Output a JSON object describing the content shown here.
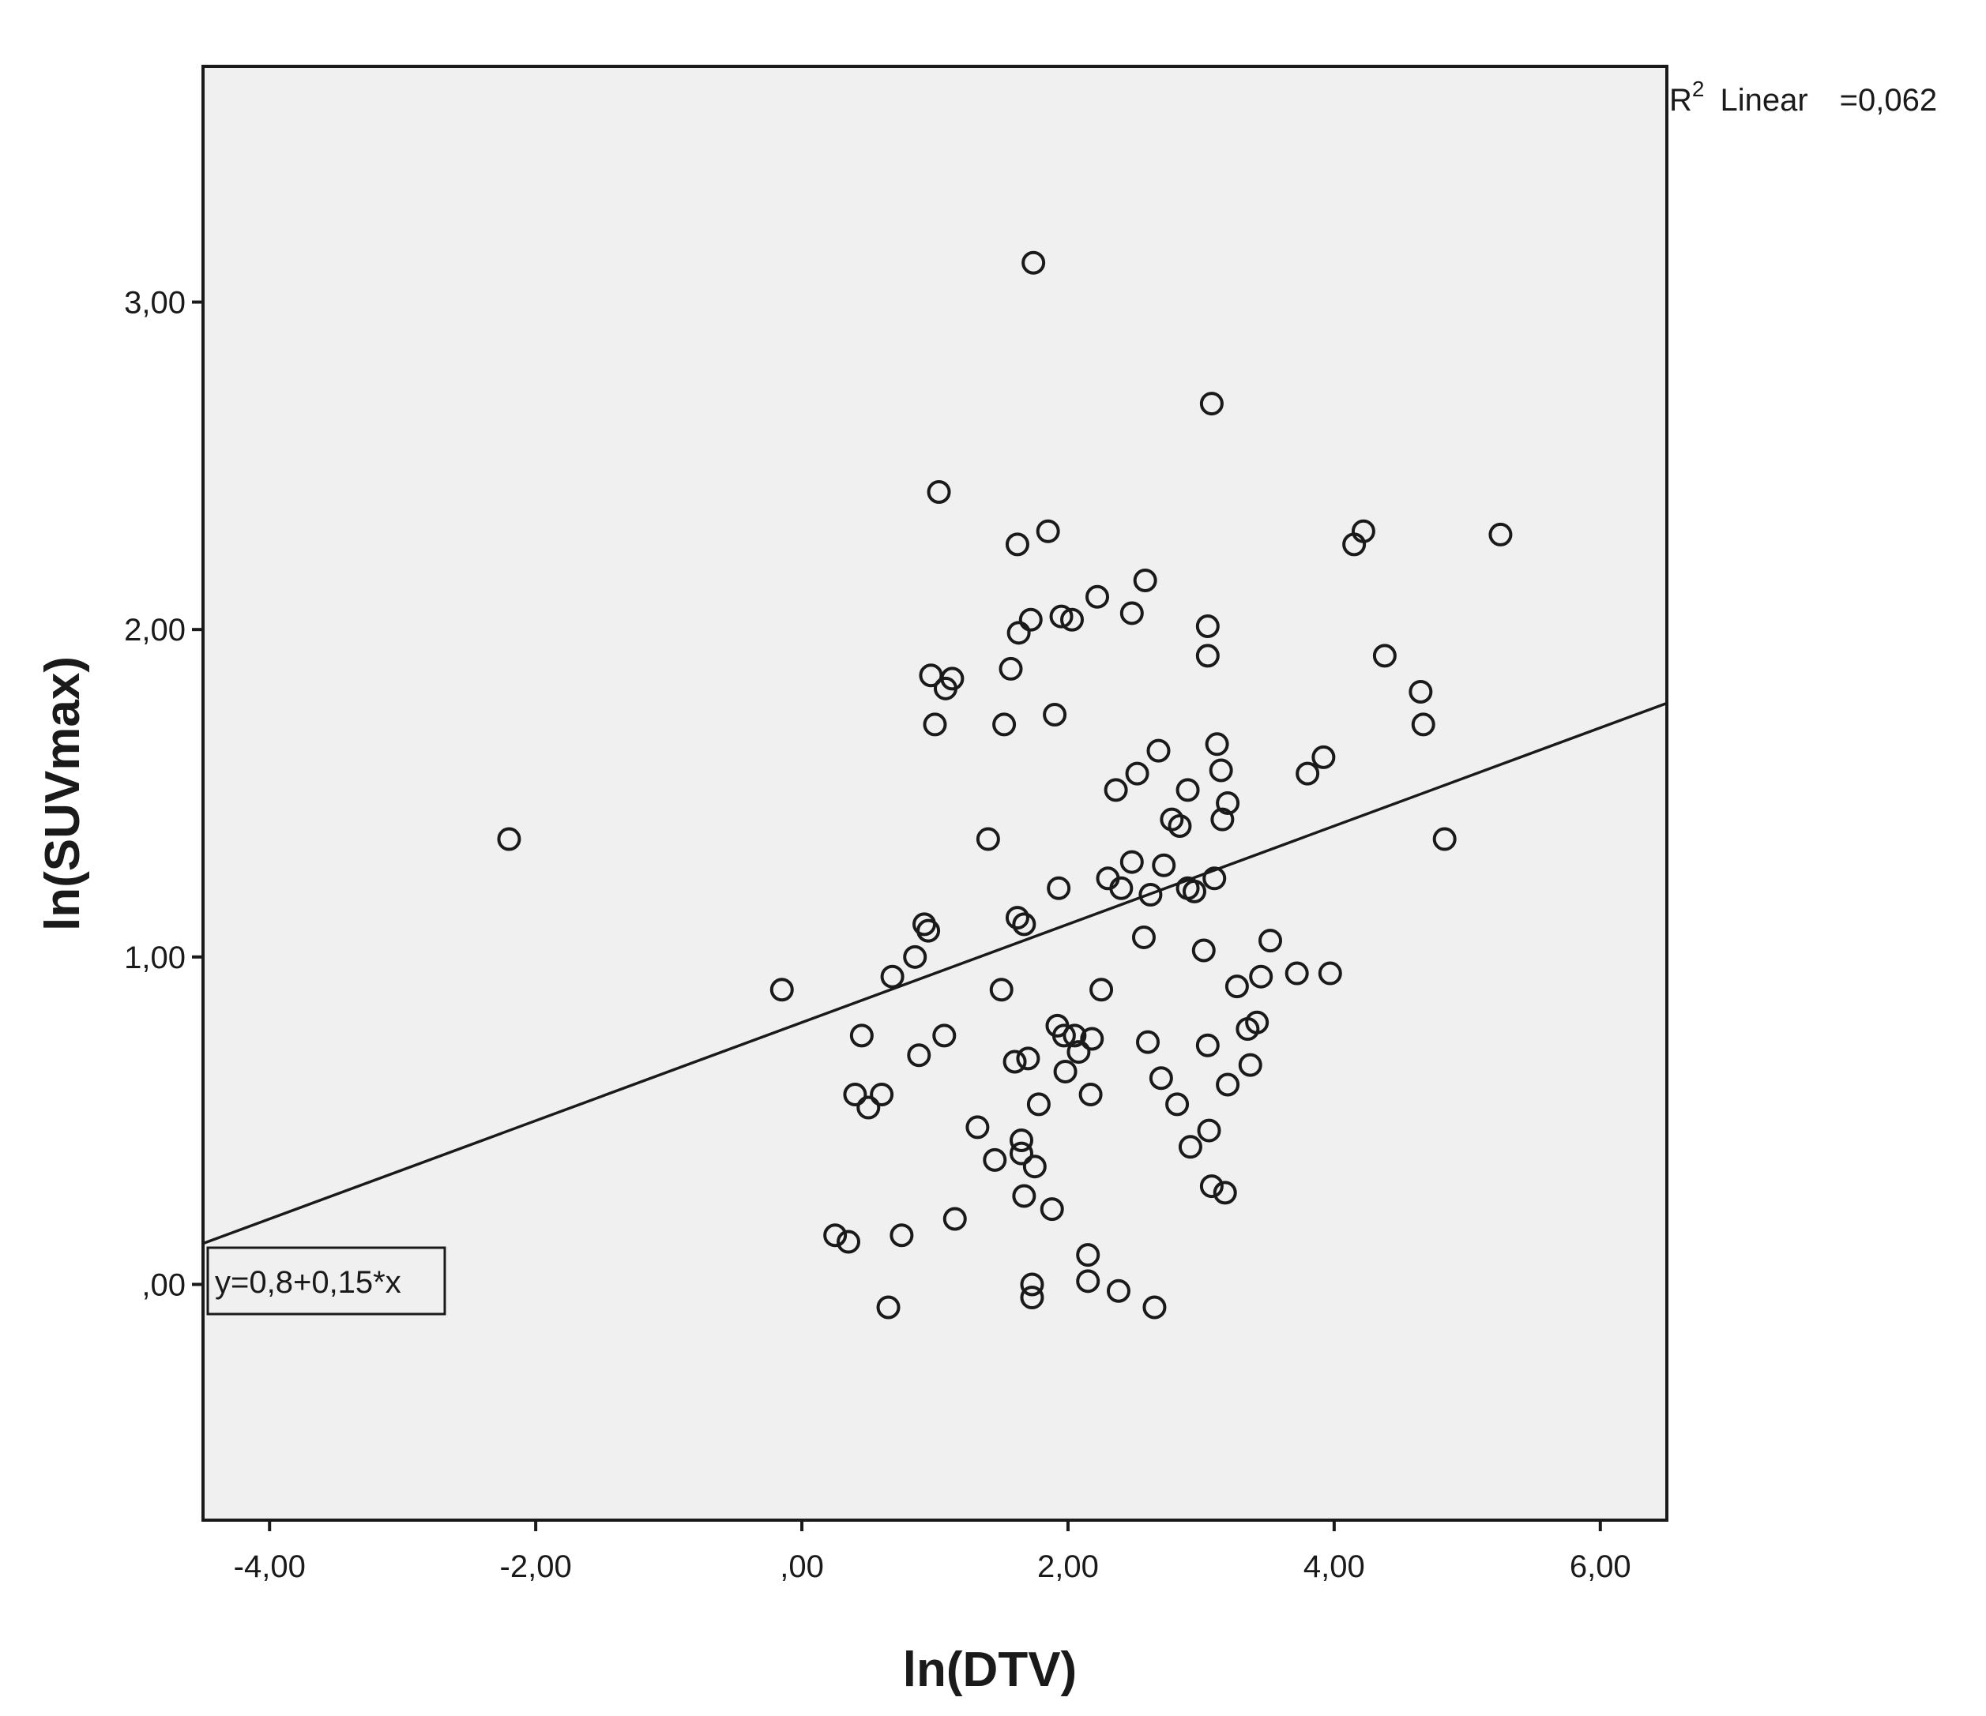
{
  "chart_data": {
    "type": "scatter",
    "xlabel": "ln(DTV)",
    "ylabel": "ln(SUVmax)",
    "xlim": [
      -4.5,
      6.5
    ],
    "ylim": [
      -0.72,
      3.72
    ],
    "x_ticks": [
      -4,
      -2,
      0,
      2,
      4,
      6
    ],
    "x_tick_labels": [
      "-4,00",
      "-2,00",
      ",00",
      "2,00",
      "4,00",
      "6,00"
    ],
    "y_ticks": [
      0,
      1,
      2,
      3
    ],
    "y_tick_labels": [
      ",00",
      "1,00",
      "2,00",
      "3,00"
    ],
    "grid": false,
    "background": "#f0f0f0",
    "marker_color": "#1a1a1a",
    "fit_line": {
      "type": "linear",
      "intercept": 0.8,
      "slope": 0.15,
      "equation_label": "y=0,8+0,15*x",
      "r2_label": "R",
      "r2_sup": "2",
      "r2_word": "Linear",
      "r2_value": "=0,062"
    },
    "points": [
      [
        -2.2,
        1.36
      ],
      [
        -0.15,
        0.9
      ],
      [
        0.25,
        0.15
      ],
      [
        0.35,
        0.13
      ],
      [
        0.4,
        0.58
      ],
      [
        0.45,
        0.76
      ],
      [
        0.5,
        0.54
      ],
      [
        0.6,
        0.58
      ],
      [
        0.65,
        -0.07
      ],
      [
        0.68,
        0.94
      ],
      [
        0.75,
        0.15
      ],
      [
        0.85,
        1.0
      ],
      [
        0.88,
        0.7
      ],
      [
        0.92,
        1.1
      ],
      [
        0.95,
        1.08
      ],
      [
        0.97,
        1.86
      ],
      [
        1.0,
        1.71
      ],
      [
        1.03,
        2.42
      ],
      [
        1.07,
        0.76
      ],
      [
        1.08,
        1.82
      ],
      [
        1.13,
        1.85
      ],
      [
        1.15,
        0.2
      ],
      [
        1.32,
        0.48
      ],
      [
        1.4,
        1.36
      ],
      [
        1.45,
        0.38
      ],
      [
        1.5,
        0.9
      ],
      [
        1.52,
        1.71
      ],
      [
        1.57,
        1.88
      ],
      [
        1.6,
        0.68
      ],
      [
        1.62,
        1.12
      ],
      [
        1.62,
        2.26
      ],
      [
        1.63,
        1.99
      ],
      [
        1.65,
        0.44
      ],
      [
        1.65,
        0.4
      ],
      [
        1.67,
        1.1
      ],
      [
        1.67,
        0.27
      ],
      [
        1.7,
        0.69
      ],
      [
        1.72,
        2.03
      ],
      [
        1.73,
        0.0
      ],
      [
        1.73,
        -0.04
      ],
      [
        1.74,
        3.12
      ],
      [
        1.75,
        0.36
      ],
      [
        1.78,
        0.55
      ],
      [
        1.85,
        2.3
      ],
      [
        1.88,
        0.23
      ],
      [
        1.9,
        1.74
      ],
      [
        1.92,
        0.79
      ],
      [
        1.93,
        1.21
      ],
      [
        1.95,
        2.04
      ],
      [
        1.97,
        0.76
      ],
      [
        1.98,
        0.65
      ],
      [
        2.03,
        2.03
      ],
      [
        2.05,
        0.76
      ],
      [
        2.08,
        0.71
      ],
      [
        2.15,
        0.09
      ],
      [
        2.15,
        0.01
      ],
      [
        2.17,
        0.58
      ],
      [
        2.18,
        0.75
      ],
      [
        2.22,
        2.1
      ],
      [
        2.25,
        0.9
      ],
      [
        2.3,
        1.24
      ],
      [
        2.36,
        1.51
      ],
      [
        2.38,
        -0.02
      ],
      [
        2.4,
        1.21
      ],
      [
        2.48,
        1.29
      ],
      [
        2.48,
        2.05
      ],
      [
        2.52,
        1.56
      ],
      [
        2.57,
        1.06
      ],
      [
        2.58,
        2.15
      ],
      [
        2.6,
        0.74
      ],
      [
        2.62,
        1.19
      ],
      [
        2.65,
        -0.07
      ],
      [
        2.68,
        1.63
      ],
      [
        2.7,
        0.63
      ],
      [
        2.72,
        1.28
      ],
      [
        2.78,
        1.42
      ],
      [
        2.82,
        0.55
      ],
      [
        2.84,
        1.4
      ],
      [
        2.9,
        1.21
      ],
      [
        2.9,
        1.51
      ],
      [
        2.92,
        0.42
      ],
      [
        2.95,
        1.2
      ],
      [
        3.02,
        1.02
      ],
      [
        3.05,
        0.73
      ],
      [
        3.05,
        1.92
      ],
      [
        3.05,
        2.01
      ],
      [
        3.06,
        0.47
      ],
      [
        3.08,
        0.3
      ],
      [
        3.08,
        2.69
      ],
      [
        3.1,
        1.24
      ],
      [
        3.12,
        1.65
      ],
      [
        3.15,
        1.57
      ],
      [
        3.16,
        1.42
      ],
      [
        3.18,
        0.28
      ],
      [
        3.2,
        1.47
      ],
      [
        3.2,
        0.61
      ],
      [
        3.27,
        0.91
      ],
      [
        3.35,
        0.78
      ],
      [
        3.37,
        0.67
      ],
      [
        3.42,
        0.8
      ],
      [
        3.45,
        0.94
      ],
      [
        3.52,
        1.05
      ],
      [
        3.72,
        0.95
      ],
      [
        3.8,
        1.56
      ],
      [
        3.92,
        1.61
      ],
      [
        3.97,
        0.95
      ],
      [
        4.15,
        2.26
      ],
      [
        4.22,
        2.3
      ],
      [
        4.38,
        1.92
      ],
      [
        4.65,
        1.81
      ],
      [
        4.67,
        1.71
      ],
      [
        4.83,
        1.36
      ],
      [
        5.25,
        2.29
      ]
    ]
  }
}
